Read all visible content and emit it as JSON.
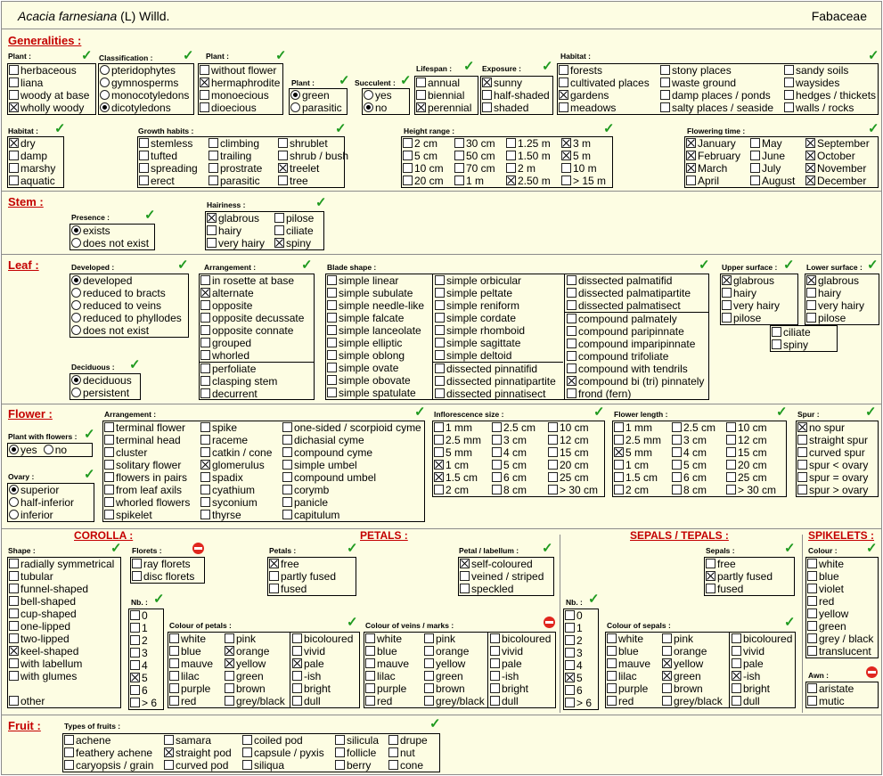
{
  "header": {
    "species": "Acacia farnesiana",
    "author": " (L) Willd.",
    "family": "Fabaceae"
  },
  "sections": {
    "generalities": "Generalities :",
    "stem": "Stem :",
    "leaf": "Leaf :",
    "flower": "Flower :",
    "fruit": "Fruit :"
  },
  "subsections": {
    "corolla": "COROLLA :",
    "petals": "PETALS :",
    "sepals": "SEPALS / TEPALS :",
    "spikelets": "SPIKELETS :"
  },
  "labels": {
    "plant1": "Plant :",
    "classification": "Classification :",
    "plant2": "Plant :",
    "plant3": "Plant :",
    "succulent": "Succulent :",
    "lifespan": "Lifespan :",
    "exposure": "Exposure :",
    "habitat1": "Habitat :",
    "habitat2": "Habitat :",
    "growth": "Growth habits :",
    "height": "Height range :",
    "flowering": "Flowering time :",
    "presence": "Presence :",
    "hairiness": "Hairiness :",
    "developed": "Developed :",
    "arrangement": "Arrangement :",
    "blade": "Blade shape :",
    "upper": "Upper surface :",
    "lower": "Lower surface :",
    "deciduous": "Deciduous :",
    "plantflowers": "Plant with flowers :",
    "ovary": "Ovary :",
    "farr": "Arrangement :",
    "infl": "Inflorescence size :",
    "flen": "Flower length :",
    "spur": "Spur :",
    "shape": "Shape :",
    "florets": "Florets :",
    "nb1": "Nb. :",
    "petals": "Petals :",
    "petallab": "Petal / labellum :",
    "colpetals": "Colour of petals :",
    "colveins": "Colour of veins / marks :",
    "nb2": "Nb. :",
    "sepals": "Sepals :",
    "colsepals": "Colour of sepals :",
    "colour": "Colour :",
    "awn": "Awn :",
    "fruits": "Types of fruits :"
  },
  "groups": {
    "g_plant1": [
      [
        "herbaceous",
        0
      ],
      [
        "liana",
        0
      ],
      [
        "woody at base",
        0
      ],
      [
        "wholly woody",
        1
      ]
    ],
    "g_class": [
      [
        "pteridophytes",
        0
      ],
      [
        "gymnosperms",
        0
      ],
      [
        "monocotyledons",
        0
      ],
      [
        "dicotyledons",
        1
      ]
    ],
    "g_plant2": [
      [
        "without flower",
        0
      ],
      [
        "hermaphrodite",
        1
      ],
      [
        "monoecious",
        0
      ],
      [
        "dioecious",
        0
      ]
    ],
    "g_plant3": [
      [
        "green",
        1
      ],
      [
        "parasitic",
        0
      ]
    ],
    "g_succ": [
      [
        "yes",
        0
      ],
      [
        "no",
        1
      ]
    ],
    "g_life": [
      [
        "annual",
        0
      ],
      [
        "biennial",
        0
      ],
      [
        "perennial",
        1
      ]
    ],
    "g_expo": [
      [
        "sunny",
        1
      ],
      [
        "half-shaded",
        0
      ],
      [
        "shaded",
        0
      ]
    ],
    "g_hab1a": [
      [
        "forests",
        0
      ],
      [
        "cultivated places",
        0
      ],
      [
        "gardens",
        1
      ],
      [
        "meadows",
        0
      ]
    ],
    "g_hab1b": [
      [
        "stony places",
        0
      ],
      [
        "waste ground",
        0
      ],
      [
        "damp places / ponds",
        0
      ],
      [
        "salty places / seaside",
        0
      ]
    ],
    "g_hab1c": [
      [
        "sandy soils",
        0
      ],
      [
        "waysides",
        0
      ],
      [
        "hedges / thickets",
        0
      ],
      [
        "walls / rocks",
        0
      ]
    ],
    "g_hab2": [
      [
        "dry",
        1
      ],
      [
        "damp",
        0
      ],
      [
        "marshy",
        0
      ],
      [
        "aquatic",
        0
      ]
    ],
    "g_grow_a": [
      [
        "stemless",
        0
      ],
      [
        "tufted",
        0
      ],
      [
        "spreading",
        0
      ],
      [
        "erect",
        0
      ]
    ],
    "g_grow_b": [
      [
        "climbing",
        0
      ],
      [
        "trailing",
        0
      ],
      [
        "prostrate",
        0
      ],
      [
        "parasitic",
        0
      ]
    ],
    "g_grow_c": [
      [
        "shrublet",
        0
      ],
      [
        "shrub / bush",
        0
      ],
      [
        "treelet",
        1
      ],
      [
        "tree",
        0
      ]
    ],
    "g_h_a": [
      [
        "2 cm",
        0
      ],
      [
        "5 cm",
        0
      ],
      [
        "10 cm",
        0
      ],
      [
        "20 cm",
        0
      ]
    ],
    "g_h_b": [
      [
        "30 cm",
        0
      ],
      [
        "50 cm",
        0
      ],
      [
        "70 cm",
        0
      ],
      [
        "1 m",
        0
      ]
    ],
    "g_h_c": [
      [
        "1.25 m",
        0
      ],
      [
        "1.50 m",
        0
      ],
      [
        "2 m",
        0
      ],
      [
        "2.50 m",
        1
      ]
    ],
    "g_h_d": [
      [
        "3 m",
        1
      ],
      [
        "5 m",
        1
      ],
      [
        "10 m",
        0
      ],
      [
        "> 15 m",
        0
      ]
    ],
    "g_fl_a": [
      [
        "January",
        1
      ],
      [
        "February",
        1
      ],
      [
        "March",
        1
      ],
      [
        "April",
        0
      ]
    ],
    "g_fl_b": [
      [
        "May",
        0
      ],
      [
        "June",
        0
      ],
      [
        "July",
        0
      ],
      [
        "August",
        0
      ]
    ],
    "g_fl_c": [
      [
        "September",
        1
      ],
      [
        "October",
        1
      ],
      [
        "November",
        1
      ],
      [
        "December",
        1
      ]
    ],
    "g_pres": [
      [
        "exists",
        1
      ],
      [
        "does not exist",
        0
      ]
    ],
    "g_hair_a": [
      [
        "glabrous",
        1
      ],
      [
        "hairy",
        0
      ],
      [
        "very hairy",
        0
      ]
    ],
    "g_hair_b": [
      [
        "pilose",
        0
      ],
      [
        "ciliate",
        0
      ],
      [
        "spiny",
        1
      ]
    ],
    "g_dev": [
      [
        "developed",
        1
      ],
      [
        "reduced to bracts",
        0
      ],
      [
        "reduced to veins",
        0
      ],
      [
        "reduced to phyllodes",
        0
      ],
      [
        "does not exist",
        0
      ]
    ],
    "g_arr_a": [
      [
        "in rosette at base",
        0
      ],
      [
        "alternate",
        1
      ],
      [
        "opposite",
        0
      ],
      [
        "opposite decussate",
        0
      ],
      [
        "opposite connate",
        0
      ],
      [
        "grouped",
        0
      ],
      [
        "whorled",
        0
      ]
    ],
    "g_arr_b": [
      [
        "perfoliate",
        0
      ],
      [
        "clasping stem",
        0
      ],
      [
        "decurrent",
        0
      ]
    ],
    "g_bl_a": [
      [
        "simple linear",
        0
      ],
      [
        "simple subulate",
        0
      ],
      [
        "simple needle-like",
        0
      ],
      [
        "simple falcate",
        0
      ],
      [
        "simple lanceolate",
        0
      ],
      [
        "simple elliptic",
        0
      ],
      [
        "simple oblong",
        0
      ],
      [
        "simple ovate",
        0
      ],
      [
        "simple obovate",
        0
      ],
      [
        "simple spatulate",
        0
      ]
    ],
    "g_bl_b": [
      [
        "simple orbicular",
        0
      ],
      [
        "simple peltate",
        0
      ],
      [
        "simple reniform",
        0
      ],
      [
        "simple cordate",
        0
      ],
      [
        "simple rhomboid",
        0
      ],
      [
        "simple sagittate",
        0
      ],
      [
        "simple deltoid",
        0
      ]
    ],
    "g_bl_c": [
      [
        "dissected pinnatifid",
        0
      ],
      [
        "dissected pinnatipartite",
        0
      ],
      [
        "dissected pinnatisect",
        0
      ]
    ],
    "g_bl_d": [
      [
        "dissected palmatifid",
        0
      ],
      [
        "dissected palmatipartite",
        0
      ],
      [
        "dissected palmatisect",
        0
      ]
    ],
    "g_bl_e": [
      [
        "compound palmately",
        0
      ],
      [
        "compound paripinnate",
        0
      ],
      [
        "compound imparipinnate",
        0
      ],
      [
        "compound trifoliate",
        0
      ],
      [
        "compound with tendrils",
        0
      ],
      [
        "compound bi (tri) pinnately",
        1
      ],
      [
        "frond  (fern)",
        0
      ]
    ],
    "g_up": [
      [
        "glabrous",
        1
      ],
      [
        "hairy",
        0
      ],
      [
        "very hairy",
        0
      ],
      [
        "pilose",
        0
      ]
    ],
    "g_low": [
      [
        "glabrous",
        1
      ],
      [
        "hairy",
        0
      ],
      [
        "very hairy",
        0
      ],
      [
        "pilose",
        0
      ]
    ],
    "g_cil": [
      [
        "ciliate",
        0
      ],
      [
        "spiny",
        0
      ]
    ],
    "g_dec": [
      [
        "deciduous",
        1
      ],
      [
        "persistent",
        0
      ]
    ],
    "g_pwf": [
      [
        "yes",
        1
      ],
      [
        "no",
        0
      ]
    ],
    "g_ovary": [
      [
        "superior",
        1
      ],
      [
        "half-inferior",
        0
      ],
      [
        "inferior",
        0
      ]
    ],
    "g_far_a": [
      [
        "terminal flower",
        0
      ],
      [
        "terminal head",
        0
      ],
      [
        "cluster",
        0
      ],
      [
        "solitary flower",
        0
      ],
      [
        "flowers in pairs",
        0
      ],
      [
        "from leaf axils",
        0
      ],
      [
        "whorled flowers",
        0
      ],
      [
        "spikelet",
        0
      ]
    ],
    "g_far_b": [
      [
        "spike",
        0
      ],
      [
        "raceme",
        0
      ],
      [
        "catkin / cone",
        0
      ],
      [
        "glomerulus",
        1
      ],
      [
        "spadix",
        0
      ],
      [
        "cyathium",
        0
      ],
      [
        "syconium",
        0
      ],
      [
        "thyrse",
        0
      ]
    ],
    "g_far_c": [
      [
        "one-sided / scorpioid cyme",
        0
      ],
      [
        "dichasial cyme",
        0
      ],
      [
        "compound cyme",
        0
      ],
      [
        "simple umbel",
        0
      ],
      [
        "compound umbel",
        0
      ],
      [
        "corymb",
        0
      ],
      [
        "panicle",
        0
      ],
      [
        "capitulum",
        0
      ]
    ],
    "g_inf_a": [
      [
        "1 mm",
        0
      ],
      [
        "2.5 mm",
        0
      ],
      [
        "5 mm",
        0
      ],
      [
        "1 cm",
        1
      ],
      [
        "1.5 cm",
        1
      ],
      [
        "2 cm",
        0
      ]
    ],
    "g_inf_b": [
      [
        "2.5 cm",
        0
      ],
      [
        "3 cm",
        0
      ],
      [
        "4 cm",
        0
      ],
      [
        "5 cm",
        0
      ],
      [
        "6 cm",
        0
      ],
      [
        "8 cm",
        0
      ]
    ],
    "g_inf_c": [
      [
        "10 cm",
        0
      ],
      [
        "12 cm",
        0
      ],
      [
        "15 cm",
        0
      ],
      [
        "20 cm",
        0
      ],
      [
        "25 cm",
        0
      ],
      [
        "> 30 cm",
        0
      ]
    ],
    "g_fln_a": [
      [
        "1 mm",
        0
      ],
      [
        "2.5 mm",
        0
      ],
      [
        "5 mm",
        1
      ],
      [
        "1 cm",
        0
      ],
      [
        "1.5 cm",
        0
      ],
      [
        "2 cm",
        0
      ]
    ],
    "g_fln_b": [
      [
        "2.5 cm",
        0
      ],
      [
        "3 cm",
        0
      ],
      [
        "4 cm",
        0
      ],
      [
        "5 cm",
        0
      ],
      [
        "6 cm",
        0
      ],
      [
        "8 cm",
        0
      ]
    ],
    "g_fln_c": [
      [
        "10 cm",
        0
      ],
      [
        "12 cm",
        0
      ],
      [
        "15 cm",
        0
      ],
      [
        "20 cm",
        0
      ],
      [
        "25 cm",
        0
      ],
      [
        "> 30 cm",
        0
      ]
    ],
    "g_spur": [
      [
        "no spur",
        1
      ],
      [
        "straight spur",
        0
      ],
      [
        "curved spur",
        0
      ],
      [
        "spur < ovary",
        0
      ],
      [
        "spur = ovary",
        0
      ],
      [
        "spur > ovary",
        0
      ]
    ],
    "g_shape": [
      [
        "radially symmetrical",
        0
      ],
      [
        "tubular",
        0
      ],
      [
        "funnel-shaped",
        0
      ],
      [
        "bell-shaped",
        0
      ],
      [
        "cup-shaped",
        0
      ],
      [
        "one-lipped",
        0
      ],
      [
        "two-lipped",
        0
      ],
      [
        "keel-shaped",
        1
      ],
      [
        "with labellum",
        0
      ],
      [
        "with glumes",
        0
      ]
    ],
    "g_shape_other": [
      [
        "other",
        0
      ]
    ],
    "g_florets": [
      [
        "ray florets",
        0
      ],
      [
        "disc florets",
        0
      ]
    ],
    "g_nb1": [
      [
        "0",
        0
      ],
      [
        "1",
        0
      ],
      [
        "2",
        0
      ],
      [
        "3",
        0
      ],
      [
        "4",
        0
      ],
      [
        "5",
        1
      ],
      [
        "6",
        0
      ],
      [
        "> 6",
        0
      ]
    ],
    "g_petals": [
      [
        "free",
        1
      ],
      [
        "partly fused",
        0
      ],
      [
        "fused",
        0
      ]
    ],
    "g_petlab": [
      [
        "self-coloured",
        1
      ],
      [
        "veined / striped",
        0
      ],
      [
        "speckled",
        0
      ]
    ],
    "g_cp_a": [
      [
        "white",
        0
      ],
      [
        "blue",
        0
      ],
      [
        "mauve",
        0
      ],
      [
        "lilac",
        0
      ],
      [
        "purple",
        0
      ],
      [
        "red",
        0
      ]
    ],
    "g_cp_b": [
      [
        "pink",
        0
      ],
      [
        "orange",
        1
      ],
      [
        "yellow",
        1
      ],
      [
        "green",
        0
      ],
      [
        "brown",
        0
      ],
      [
        "grey/black",
        0
      ]
    ],
    "g_cp_c": [
      [
        "bicoloured",
        0
      ],
      [
        "vivid",
        0
      ],
      [
        "pale",
        1
      ],
      [
        "-ish",
        0
      ],
      [
        "bright",
        0
      ],
      [
        "dull",
        0
      ]
    ],
    "g_cv_a": [
      [
        "white",
        0
      ],
      [
        "blue",
        0
      ],
      [
        "mauve",
        0
      ],
      [
        "lilac",
        0
      ],
      [
        "purple",
        0
      ],
      [
        "red",
        0
      ]
    ],
    "g_cv_b": [
      [
        "pink",
        0
      ],
      [
        "orange",
        0
      ],
      [
        "yellow",
        0
      ],
      [
        "green",
        0
      ],
      [
        "brown",
        0
      ],
      [
        "grey/black",
        0
      ]
    ],
    "g_cv_c": [
      [
        "bicoloured",
        0
      ],
      [
        "vivid",
        0
      ],
      [
        "pale",
        0
      ],
      [
        "-ish",
        0
      ],
      [
        "bright",
        0
      ],
      [
        "dull",
        0
      ]
    ],
    "g_nb2": [
      [
        "0",
        0
      ],
      [
        "1",
        0
      ],
      [
        "2",
        0
      ],
      [
        "3",
        0
      ],
      [
        "4",
        0
      ],
      [
        "5",
        1
      ],
      [
        "6",
        0
      ],
      [
        "> 6",
        0
      ]
    ],
    "g_sepals": [
      [
        "free",
        0
      ],
      [
        "partly fused",
        1
      ],
      [
        "fused",
        0
      ]
    ],
    "g_cs_a": [
      [
        "white",
        0
      ],
      [
        "blue",
        0
      ],
      [
        "mauve",
        0
      ],
      [
        "lilac",
        0
      ],
      [
        "purple",
        0
      ],
      [
        "red",
        0
      ]
    ],
    "g_cs_b": [
      [
        "pink",
        0
      ],
      [
        "orange",
        0
      ],
      [
        "yellow",
        1
      ],
      [
        "green",
        1
      ],
      [
        "brown",
        0
      ],
      [
        "grey/black",
        0
      ]
    ],
    "g_cs_c": [
      [
        "bicoloured",
        0
      ],
      [
        "vivid",
        0
      ],
      [
        "pale",
        0
      ],
      [
        "-ish",
        1
      ],
      [
        "bright",
        0
      ],
      [
        "dull",
        0
      ]
    ],
    "g_colour": [
      [
        "white",
        0
      ],
      [
        "blue",
        0
      ],
      [
        "violet",
        0
      ],
      [
        "red",
        0
      ],
      [
        "yellow",
        0
      ],
      [
        "green",
        0
      ],
      [
        "grey / black",
        0
      ],
      [
        "translucent",
        0
      ]
    ],
    "g_awn": [
      [
        "aristate",
        0
      ],
      [
        "mutic",
        0
      ]
    ],
    "g_fr_a": [
      [
        "achene",
        0
      ],
      [
        "feathery achene",
        0
      ],
      [
        "caryopsis / grain",
        0
      ]
    ],
    "g_fr_b": [
      [
        "samara",
        0
      ],
      [
        "straight pod",
        1
      ],
      [
        "curved pod",
        0
      ]
    ],
    "g_fr_c": [
      [
        "coiled pod",
        0
      ],
      [
        "capsule / pyxis",
        0
      ],
      [
        "siliqua",
        0
      ]
    ],
    "g_fr_d": [
      [
        "silicula",
        0
      ],
      [
        "follicle",
        0
      ],
      [
        "berry",
        0
      ]
    ],
    "g_fr_e": [
      [
        "drupe",
        0
      ],
      [
        "nut",
        0
      ],
      [
        "cone",
        0
      ]
    ]
  },
  "colors": {
    "accent": "#c40000",
    "check": "#1f9a1f",
    "stop": "#e0261e",
    "background": "#fdfde3"
  }
}
